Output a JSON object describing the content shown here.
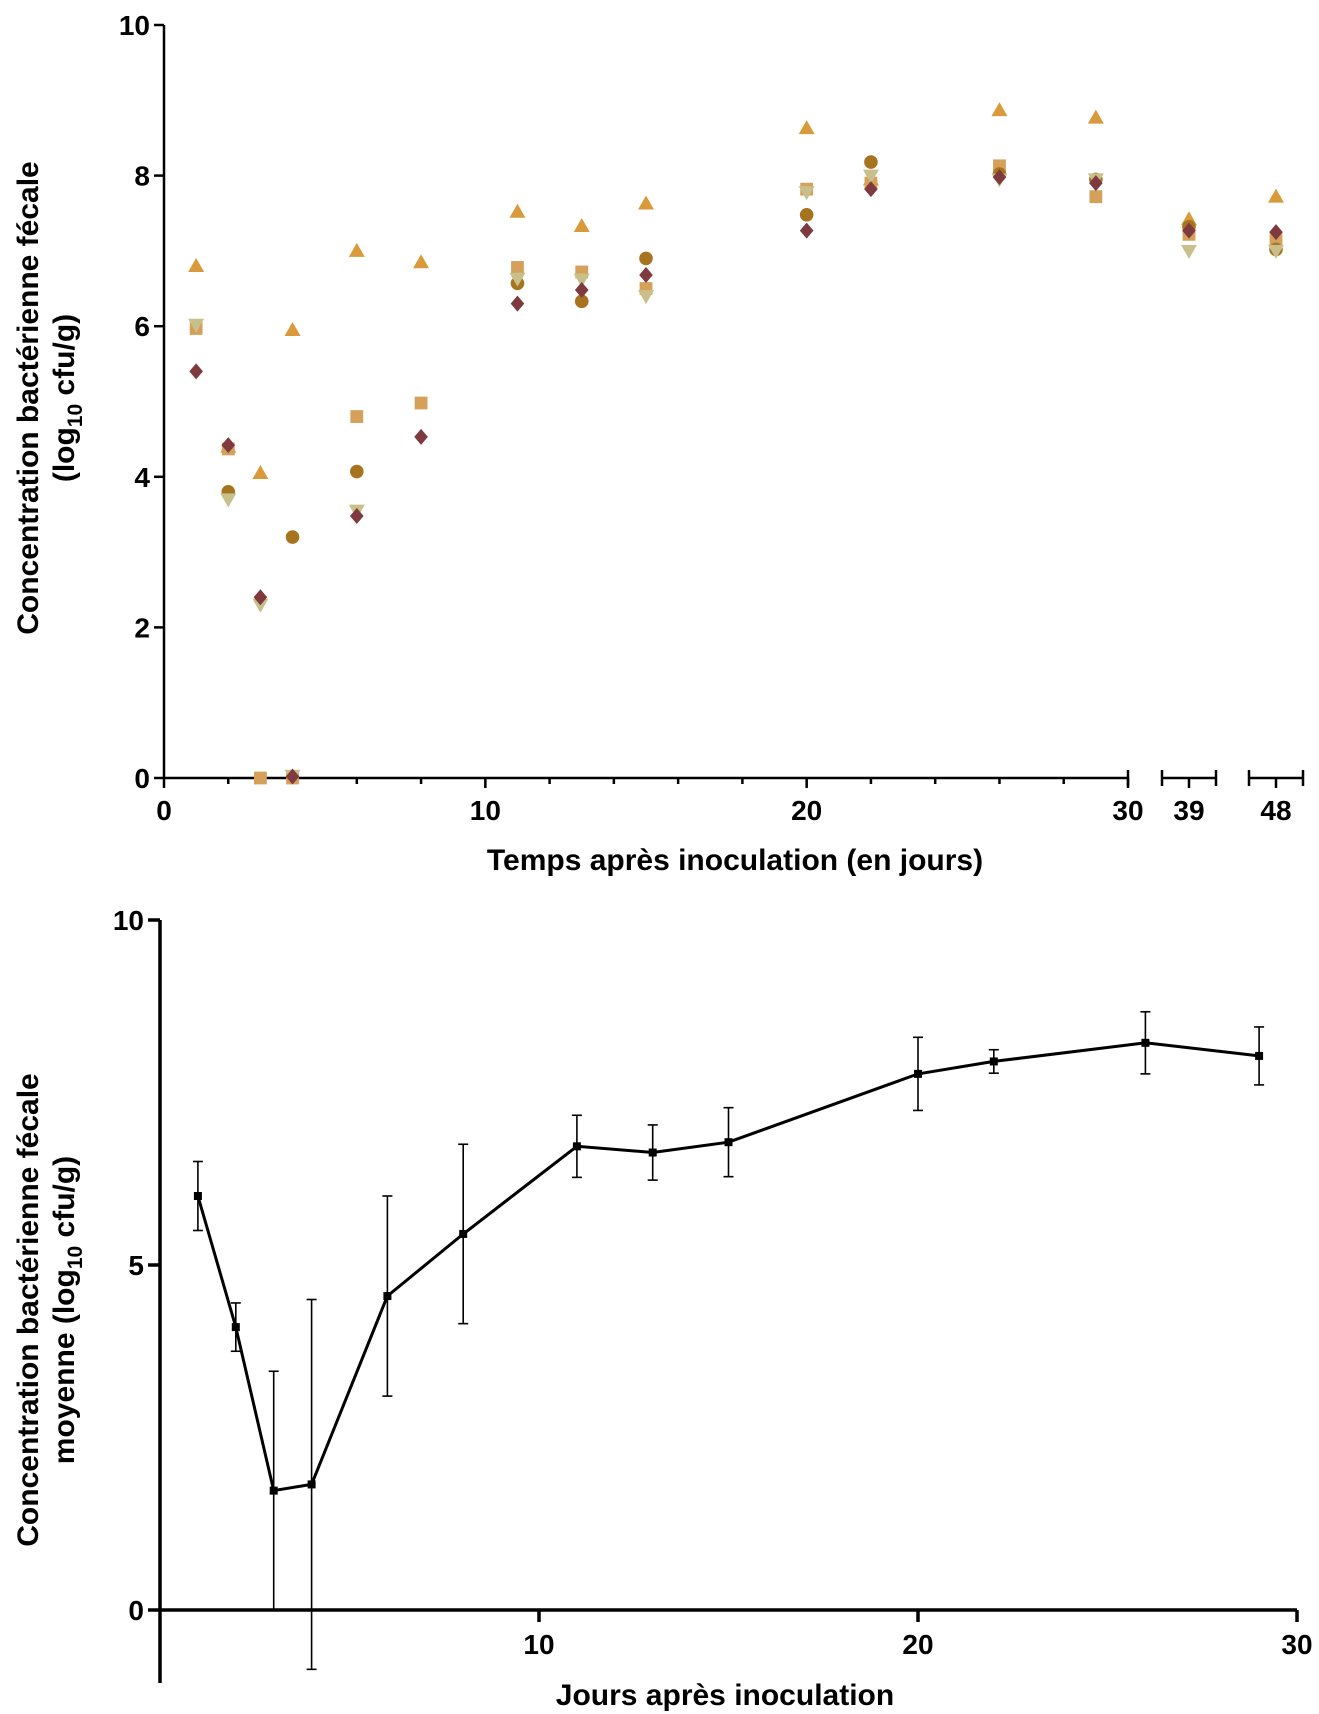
{
  "chart_data": [
    {
      "type": "scatter",
      "title": "",
      "xlabel": "Temps après inoculation (en jours)",
      "ylabel_line1": "Concentration bactérienne fécale",
      "ylabel_line2_prefix": "(log",
      "ylabel_line2_sub": "10",
      "ylabel_line2_suffix": " cfu/g)",
      "ylim": [
        0,
        10
      ],
      "yticks": [
        "0",
        "2",
        "4",
        "6",
        "8",
        "10"
      ],
      "xticks": [
        {
          "x": 0,
          "label": "0"
        },
        {
          "x": 10,
          "label": "10"
        },
        {
          "x": 20,
          "label": "20"
        },
        {
          "x": 30,
          "label": "30"
        },
        {
          "x": 39,
          "label": "39"
        },
        {
          "x": 48,
          "label": "48"
        }
      ],
      "x_axis_breaks": [
        [
          30,
          38
        ],
        [
          40,
          47
        ]
      ],
      "xlim_segments": [
        [
          0,
          30
        ],
        [
          38,
          40
        ],
        [
          47,
          49
        ]
      ],
      "grid": false,
      "legend": "none",
      "series": [
        {
          "marker": "triangle-up",
          "color": "#d99a3c",
          "points": [
            [
              1,
              6.8
            ],
            [
              2,
              4.4
            ],
            [
              3,
              4.05
            ],
            [
              4,
              5.95
            ],
            [
              6,
              7.0
            ],
            [
              8,
              6.85
            ],
            [
              11,
              7.52
            ],
            [
              13,
              7.33
            ],
            [
              15,
              7.63
            ],
            [
              20,
              8.63
            ],
            [
              22,
              7.95
            ],
            [
              26,
              8.87
            ],
            [
              29,
              8.77
            ],
            [
              39,
              7.42
            ],
            [
              48,
              7.72
            ]
          ]
        },
        {
          "marker": "square",
          "color": "#d4a05a",
          "points": [
            [
              1,
              5.97
            ],
            [
              2,
              4.37
            ],
            [
              3,
              0.0
            ],
            [
              4,
              0.0
            ],
            [
              6,
              4.8
            ],
            [
              8,
              4.98
            ],
            [
              11,
              6.78
            ],
            [
              13,
              6.72
            ],
            [
              15,
              6.5
            ],
            [
              20,
              7.82
            ],
            [
              22,
              7.9
            ],
            [
              26,
              8.13
            ],
            [
              29,
              7.72
            ],
            [
              39,
              7.22
            ],
            [
              48,
              7.15
            ]
          ]
        },
        {
          "marker": "circle",
          "color": "#a8731e",
          "points": [
            [
              2,
              3.8
            ],
            [
              4,
              3.2
            ],
            [
              6,
              4.07
            ],
            [
              11,
              6.57
            ],
            [
              13,
              6.33
            ],
            [
              15,
              6.9
            ],
            [
              20,
              7.48
            ],
            [
              22,
              8.18
            ],
            [
              26,
              8.02
            ],
            [
              29,
              7.95
            ],
            [
              39,
              7.32
            ],
            [
              48,
              7.02
            ]
          ]
        },
        {
          "marker": "triangle-down",
          "color": "#c8bf8a",
          "points": [
            [
              1,
              6.02
            ],
            [
              2,
              3.7
            ],
            [
              3,
              2.3
            ],
            [
              4,
              0.03
            ],
            [
              6,
              3.55
            ],
            [
              11,
              6.63
            ],
            [
              13,
              6.62
            ],
            [
              15,
              6.4
            ],
            [
              20,
              7.78
            ],
            [
              22,
              8.0
            ],
            [
              26,
              7.95
            ],
            [
              29,
              7.95
            ],
            [
              39,
              7.0
            ],
            [
              48,
              7.0
            ]
          ]
        },
        {
          "marker": "diamond",
          "color": "#7e3a3e",
          "points": [
            [
              1,
              5.4
            ],
            [
              2,
              4.42
            ],
            [
              3,
              2.4
            ],
            [
              4,
              0.02
            ],
            [
              6,
              3.48
            ],
            [
              8,
              4.53
            ],
            [
              11,
              6.3
            ],
            [
              13,
              6.48
            ],
            [
              15,
              6.68
            ],
            [
              20,
              7.27
            ],
            [
              22,
              7.82
            ],
            [
              26,
              7.98
            ],
            [
              29,
              7.9
            ],
            [
              39,
              7.27
            ],
            [
              48,
              7.25
            ]
          ]
        }
      ]
    },
    {
      "type": "line",
      "title": "",
      "xlabel": "Jours après inoculation",
      "ylabel_line1": "Concentration bactérienne fécale",
      "ylabel_line2_prefix": "moyenne (log",
      "ylabel_line2_sub": "10",
      "ylabel_line2_suffix": " cfu/g)",
      "xlim": [
        0,
        30
      ],
      "ylim": [
        0,
        10
      ],
      "yticks": [
        "0",
        "5",
        "10"
      ],
      "xticks": [
        "10",
        "20",
        "30"
      ],
      "grid": false,
      "legend": "none",
      "series": [
        {
          "marker": "square",
          "color": "#000000",
          "x": [
            1,
            2,
            3,
            4,
            6,
            8,
            11,
            13,
            15,
            20,
            22,
            26,
            29
          ],
          "y": [
            6.0,
            4.1,
            1.73,
            1.82,
            4.55,
            5.45,
            6.72,
            6.63,
            6.78,
            7.77,
            7.95,
            8.22,
            8.03
          ],
          "error": [
            0.5,
            0.35,
            1.73,
            2.68,
            1.45,
            1.3,
            0.45,
            0.4,
            0.5,
            0.53,
            0.17,
            0.45,
            0.42
          ]
        }
      ]
    }
  ]
}
